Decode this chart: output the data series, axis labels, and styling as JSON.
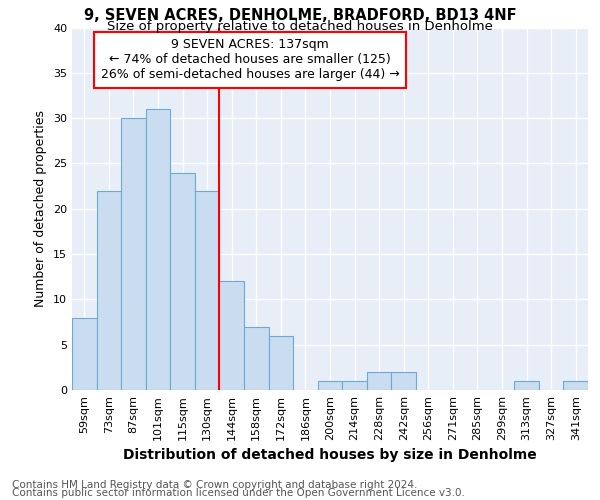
{
  "title": "9, SEVEN ACRES, DENHOLME, BRADFORD, BD13 4NF",
  "subtitle": "Size of property relative to detached houses in Denholme",
  "xlabel": "Distribution of detached houses by size in Denholme",
  "ylabel": "Number of detached properties",
  "categories": [
    "59sqm",
    "73sqm",
    "87sqm",
    "101sqm",
    "115sqm",
    "130sqm",
    "144sqm",
    "158sqm",
    "172sqm",
    "186sqm",
    "200sqm",
    "214sqm",
    "228sqm",
    "242sqm",
    "256sqm",
    "271sqm",
    "285sqm",
    "299sqm",
    "313sqm",
    "327sqm",
    "341sqm"
  ],
  "values": [
    8,
    22,
    30,
    31,
    24,
    22,
    12,
    7,
    6,
    0,
    1,
    1,
    2,
    2,
    0,
    0,
    0,
    0,
    1,
    0,
    1
  ],
  "bar_color": "#c9dcf0",
  "bar_edge_color": "#6aaad4",
  "vline_x": 6,
  "vline_color": "red",
  "annotation_text": "9 SEVEN ACRES: 137sqm\n← 74% of detached houses are smaller (125)\n26% of semi-detached houses are larger (44) →",
  "ylim": [
    0,
    40
  ],
  "yticks": [
    0,
    5,
    10,
    15,
    20,
    25,
    30,
    35,
    40
  ],
  "footer_line1": "Contains HM Land Registry data © Crown copyright and database right 2024.",
  "footer_line2": "Contains public sector information licensed under the Open Government Licence v3.0.",
  "fig_bg_color": "#ffffff",
  "plot_bg_color": "#e8eef8",
  "grid_color": "#ffffff",
  "title_fontsize": 10.5,
  "subtitle_fontsize": 9.5,
  "xlabel_fontsize": 10,
  "ylabel_fontsize": 9,
  "tick_fontsize": 8,
  "annot_fontsize": 9,
  "footer_fontsize": 7.5
}
